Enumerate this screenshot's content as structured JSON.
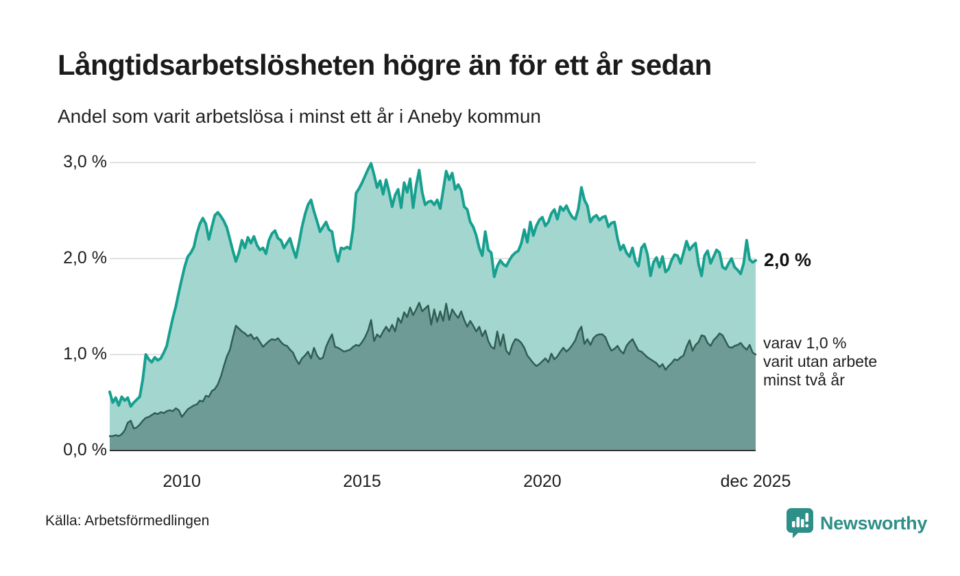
{
  "header": {
    "title": "Långtidsarbetslösheten högre än för ett år sedan",
    "subtitle": "Andel som varit arbetslösa i minst ett år i Aneby kommun"
  },
  "chart_data": {
    "type": "area",
    "title": "Långtidsarbetslösheten högre än för ett år sedan",
    "subtitle": "Andel som varit arbetslösa i minst ett år i Aneby kommun",
    "frequency": "monthly",
    "x_start_year": 2008,
    "x_end_year_decimal": 2025.917,
    "x_end_label": "dec 2025",
    "ylim": [
      0,
      3.0
    ],
    "grid_on": true,
    "grid_color": "#d9d9d9",
    "axis_color": "#333333",
    "yticks": [
      {
        "value": 3.0,
        "label": "3,0 %"
      },
      {
        "value": 2.0,
        "label": "2,0 %"
      },
      {
        "value": 1.0,
        "label": "1,0 %"
      },
      {
        "value": 0.0,
        "label": "0,0 %"
      }
    ],
    "xticks": [
      {
        "value": 2010,
        "label": "2010"
      },
      {
        "value": 2015,
        "label": "2015"
      },
      {
        "value": 2020,
        "label": "2020"
      },
      {
        "value": 2025.917,
        "label": "dec 2025"
      }
    ],
    "series": [
      {
        "id": "unemployed-min-one-year",
        "label": "Andel arbetslösa minst ett år",
        "line_color": "#17a08f",
        "fill_color": "#a3d6cf",
        "line_width": 4,
        "end_value": 2.0,
        "end_annotation": "2,0 %",
        "values": [
          0.61,
          0.5,
          0.55,
          0.47,
          0.56,
          0.52,
          0.55,
          0.46,
          0.5,
          0.53,
          0.56,
          0.74,
          1.0,
          0.95,
          0.92,
          0.97,
          0.94,
          0.96,
          1.02,
          1.09,
          1.24,
          1.38,
          1.5,
          1.65,
          1.79,
          1.92,
          2.02,
          2.06,
          2.12,
          2.26,
          2.36,
          2.42,
          2.36,
          2.2,
          2.33,
          2.45,
          2.48,
          2.44,
          2.39,
          2.32,
          2.2,
          2.08,
          1.97,
          2.06,
          2.19,
          2.11,
          2.22,
          2.16,
          2.23,
          2.14,
          2.09,
          2.11,
          2.05,
          2.19,
          2.26,
          2.29,
          2.21,
          2.19,
          2.11,
          2.16,
          2.21,
          2.1,
          2.01,
          2.16,
          2.33,
          2.46,
          2.56,
          2.61,
          2.49,
          2.39,
          2.28,
          2.33,
          2.38,
          2.3,
          2.28,
          2.09,
          1.97,
          2.11,
          2.1,
          2.12,
          2.1,
          2.31,
          2.68,
          2.73,
          2.79,
          2.86,
          2.93,
          2.99,
          2.87,
          2.74,
          2.81,
          2.67,
          2.82,
          2.69,
          2.54,
          2.66,
          2.72,
          2.53,
          2.79,
          2.69,
          2.83,
          2.53,
          2.76,
          2.92,
          2.69,
          2.56,
          2.59,
          2.6,
          2.56,
          2.61,
          2.52,
          2.71,
          2.91,
          2.82,
          2.89,
          2.72,
          2.77,
          2.71,
          2.54,
          2.51,
          2.38,
          2.33,
          2.24,
          2.11,
          2.03,
          2.28,
          2.09,
          2.06,
          1.81,
          1.92,
          1.98,
          1.94,
          1.92,
          1.98,
          2.03,
          2.06,
          2.08,
          2.16,
          2.3,
          2.17,
          2.38,
          2.24,
          2.34,
          2.4,
          2.43,
          2.34,
          2.38,
          2.47,
          2.51,
          2.41,
          2.54,
          2.5,
          2.55,
          2.48,
          2.43,
          2.41,
          2.52,
          2.74,
          2.61,
          2.55,
          2.38,
          2.43,
          2.45,
          2.4,
          2.43,
          2.44,
          2.33,
          2.37,
          2.38,
          2.21,
          2.09,
          2.14,
          2.06,
          2.02,
          2.11,
          1.97,
          1.92,
          2.11,
          2.15,
          2.04,
          1.82,
          1.96,
          2.01,
          1.91,
          2.02,
          1.86,
          1.89,
          1.98,
          2.04,
          2.03,
          1.95,
          2.06,
          2.18,
          2.09,
          2.13,
          2.16,
          1.94,
          1.82,
          2.03,
          2.08,
          1.95,
          2.02,
          2.09,
          2.06,
          1.91,
          1.89,
          1.95,
          2.0,
          1.91,
          1.88,
          1.84,
          1.95,
          2.19,
          1.99,
          1.96,
          1.98
        ]
      },
      {
        "id": "unemployed-min-two-years",
        "label": "varav utan arbete minst två år",
        "line_color": "#2f5d56",
        "fill_color": "#6f9b96",
        "line_width": 2.5,
        "end_value": 1.0,
        "end_annotation": "varav 1,0 %\nvarit utan arbete\nminst två år",
        "values": [
          0.15,
          0.15,
          0.16,
          0.15,
          0.17,
          0.21,
          0.29,
          0.31,
          0.23,
          0.24,
          0.27,
          0.31,
          0.34,
          0.35,
          0.37,
          0.39,
          0.38,
          0.4,
          0.39,
          0.41,
          0.42,
          0.41,
          0.44,
          0.42,
          0.35,
          0.39,
          0.43,
          0.45,
          0.47,
          0.48,
          0.52,
          0.51,
          0.57,
          0.56,
          0.62,
          0.64,
          0.69,
          0.77,
          0.88,
          0.98,
          1.05,
          1.18,
          1.3,
          1.27,
          1.24,
          1.22,
          1.19,
          1.21,
          1.16,
          1.18,
          1.13,
          1.08,
          1.11,
          1.14,
          1.16,
          1.15,
          1.17,
          1.13,
          1.1,
          1.09,
          1.05,
          1.02,
          0.95,
          0.9,
          0.96,
          0.99,
          1.03,
          0.96,
          1.07,
          0.99,
          0.95,
          0.97,
          1.08,
          1.15,
          1.21,
          1.08,
          1.07,
          1.05,
          1.03,
          1.04,
          1.05,
          1.08,
          1.1,
          1.09,
          1.13,
          1.18,
          1.25,
          1.36,
          1.14,
          1.21,
          1.18,
          1.24,
          1.29,
          1.24,
          1.31,
          1.24,
          1.38,
          1.33,
          1.44,
          1.39,
          1.49,
          1.41,
          1.47,
          1.54,
          1.45,
          1.48,
          1.51,
          1.31,
          1.47,
          1.34,
          1.45,
          1.35,
          1.53,
          1.36,
          1.47,
          1.42,
          1.38,
          1.45,
          1.36,
          1.29,
          1.35,
          1.3,
          1.24,
          1.29,
          1.19,
          1.25,
          1.14,
          1.08,
          1.06,
          1.24,
          1.09,
          1.21,
          1.04,
          1.0,
          1.1,
          1.16,
          1.15,
          1.12,
          1.07,
          0.99,
          0.95,
          0.91,
          0.88,
          0.9,
          0.93,
          0.96,
          0.92,
          1.01,
          0.95,
          0.98,
          1.03,
          1.07,
          1.03,
          1.06,
          1.1,
          1.15,
          1.24,
          1.29,
          1.11,
          1.16,
          1.1,
          1.17,
          1.2,
          1.21,
          1.21,
          1.18,
          1.1,
          1.04,
          1.06,
          1.09,
          1.04,
          1.01,
          1.09,
          1.13,
          1.16,
          1.1,
          1.04,
          1.03,
          1.0,
          0.97,
          0.95,
          0.93,
          0.91,
          0.87,
          0.9,
          0.84,
          0.88,
          0.91,
          0.95,
          0.94,
          0.97,
          0.99,
          1.08,
          1.15,
          1.04,
          1.1,
          1.13,
          1.2,
          1.19,
          1.12,
          1.09,
          1.15,
          1.18,
          1.22,
          1.2,
          1.14,
          1.08,
          1.07,
          1.09,
          1.1,
          1.12,
          1.08,
          1.05,
          1.1,
          1.02,
          1.0
        ]
      }
    ]
  },
  "footer": {
    "source": "Källa: Arbetsförmedlingen",
    "logo_text": "Newsworthy",
    "logo_color": "#2e8f88",
    "logo_icon": "bar-chart-speech-bubble-icon"
  }
}
